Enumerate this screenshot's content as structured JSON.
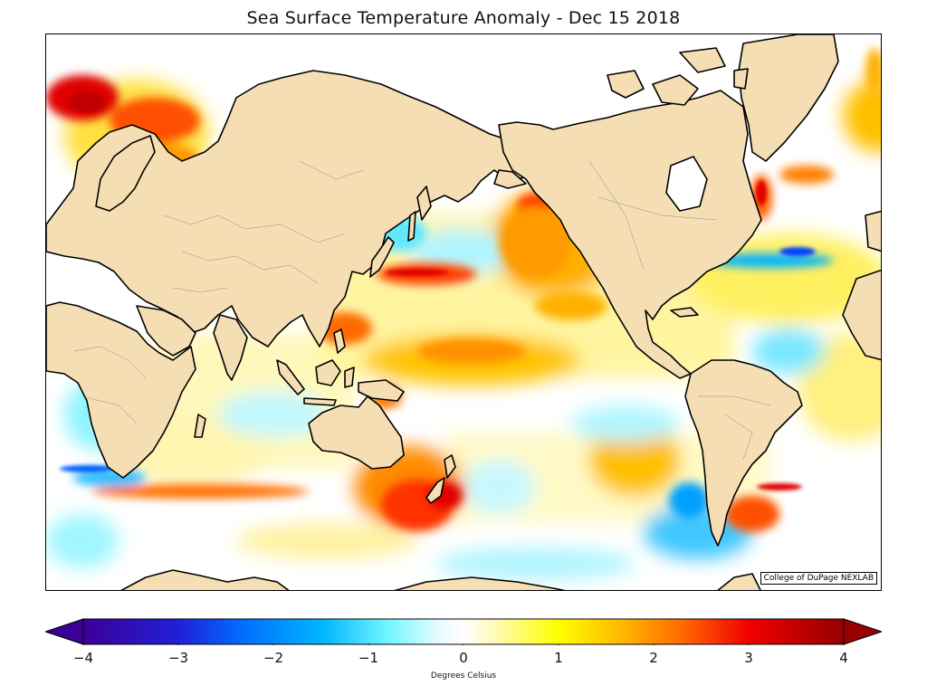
{
  "title": "Sea Surface Temperature Anomaly - Dec 15 2018",
  "credit": "College of DuPage NEXLAB",
  "colorbar": {
    "label": "Degrees Celsius",
    "range": [
      -4,
      4
    ],
    "ticks": [
      "−4",
      "−3",
      "−2",
      "−1",
      "0",
      "1",
      "2",
      "3",
      "4"
    ],
    "extend": "both",
    "stops": [
      {
        "value": -4,
        "color": "#3c0096"
      },
      {
        "value": -3,
        "color": "#2020d8"
      },
      {
        "value": -2.3,
        "color": "#0070ff"
      },
      {
        "value": -1.5,
        "color": "#00b4ff"
      },
      {
        "value": -0.8,
        "color": "#70f6ff"
      },
      {
        "value": -0.25,
        "color": "#e8fcff"
      },
      {
        "value": 0,
        "color": "#ffffff"
      },
      {
        "value": 0.3,
        "color": "#fffac0"
      },
      {
        "value": 1,
        "color": "#ffff00"
      },
      {
        "value": 1.7,
        "color": "#ffb400"
      },
      {
        "value": 2.3,
        "color": "#ff6a00"
      },
      {
        "value": 3,
        "color": "#f00000"
      },
      {
        "value": 4,
        "color": "#960000"
      }
    ]
  },
  "land_color": "#f5deb3",
  "map": {
    "projection": "mercator",
    "center_longitude": 150
  }
}
